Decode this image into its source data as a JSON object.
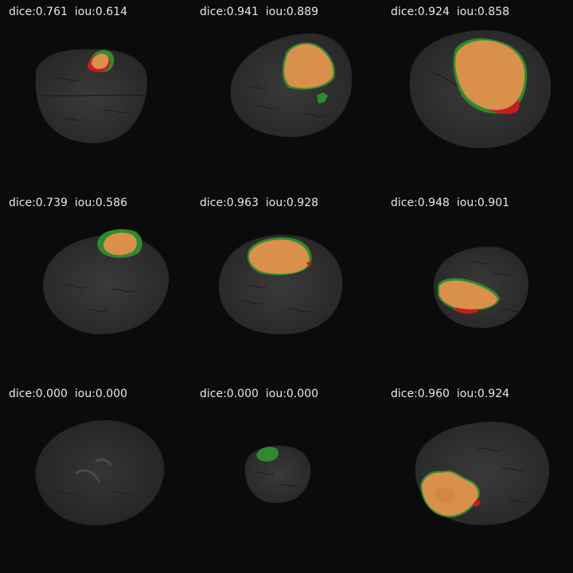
{
  "panels": [
    {
      "dice_label": "dice:0.761",
      "iou_label": "iou:0.614"
    },
    {
      "dice_label": "dice:0.941",
      "iou_label": "iou:0.889"
    },
    {
      "dice_label": "dice:0.924",
      "iou_label": "iou:0.858"
    },
    {
      "dice_label": "dice:0.739",
      "iou_label": "iou:0.586"
    },
    {
      "dice_label": "dice:0.963",
      "iou_label": "iou:0.928"
    },
    {
      "dice_label": "dice:0.948",
      "iou_label": "iou:0.901"
    },
    {
      "dice_label": "dice:0.000",
      "iou_label": "iou:0.000"
    },
    {
      "dice_label": "dice:0.000",
      "iou_label": "iou:0.000"
    },
    {
      "dice_label": "dice:0.960",
      "iou_label": "iou:0.924"
    }
  ],
  "colors": {
    "background": "#0b0b0b",
    "brain": "#2f2f2f",
    "overlap": "#d9904a",
    "ground_truth_only": "#2e8b2e",
    "prediction_only": "#c02020",
    "text": "#e8e8e8"
  }
}
